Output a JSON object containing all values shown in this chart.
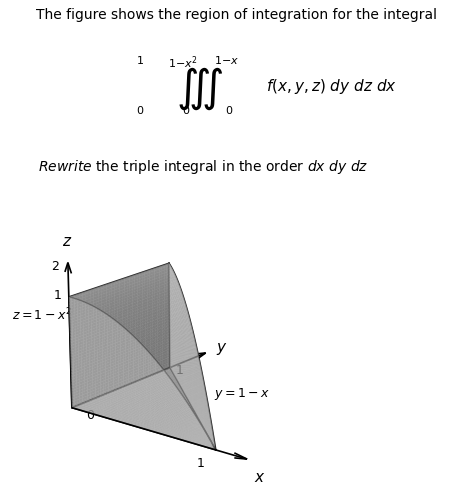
{
  "title_text": "The figure shows the region of integration for the integral",
  "face_color": "#b8b8b8",
  "edge_color": "#222222",
  "alpha": 0.6,
  "bg_color": "#ffffff",
  "elev": 18,
  "azim": -52
}
